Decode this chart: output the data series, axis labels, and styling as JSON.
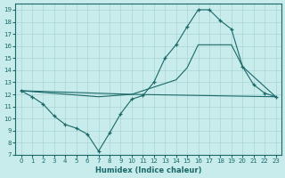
{
  "xlabel": "Humidex (Indice chaleur)",
  "bg_color": "#c8ecec",
  "line_color": "#1a6868",
  "grid_color": "#aad4d4",
  "xlim": [
    -0.5,
    23.5
  ],
  "ylim": [
    7,
    19.5
  ],
  "yticks": [
    7,
    8,
    9,
    10,
    11,
    12,
    13,
    14,
    15,
    16,
    17,
    18,
    19
  ],
  "xticks": [
    0,
    1,
    2,
    3,
    4,
    5,
    6,
    7,
    8,
    9,
    10,
    11,
    12,
    13,
    14,
    15,
    16,
    17,
    18,
    19,
    20,
    21,
    22,
    23
  ],
  "line1_x": [
    0,
    1,
    2,
    3,
    4,
    5,
    6,
    7,
    8,
    9,
    10,
    11,
    12,
    13,
    14,
    15,
    16,
    17,
    18,
    19,
    20,
    21,
    22,
    23
  ],
  "line1_y": [
    12.3,
    11.8,
    11.2,
    10.2,
    9.5,
    9.2,
    8.7,
    7.3,
    8.8,
    10.4,
    11.6,
    11.9,
    13.0,
    15.0,
    16.1,
    17.6,
    19.0,
    19.0,
    18.1,
    17.4,
    14.3,
    12.8,
    12.1,
    11.8
  ],
  "line2_x": [
    0,
    10,
    14,
    15,
    16,
    19,
    20,
    23
  ],
  "line2_y": [
    12.3,
    12.0,
    13.2,
    14.2,
    16.1,
    16.1,
    14.3,
    11.8
  ],
  "line3_x": [
    0,
    7,
    10,
    23
  ],
  "line3_y": [
    12.3,
    11.8,
    12.0,
    11.8
  ]
}
